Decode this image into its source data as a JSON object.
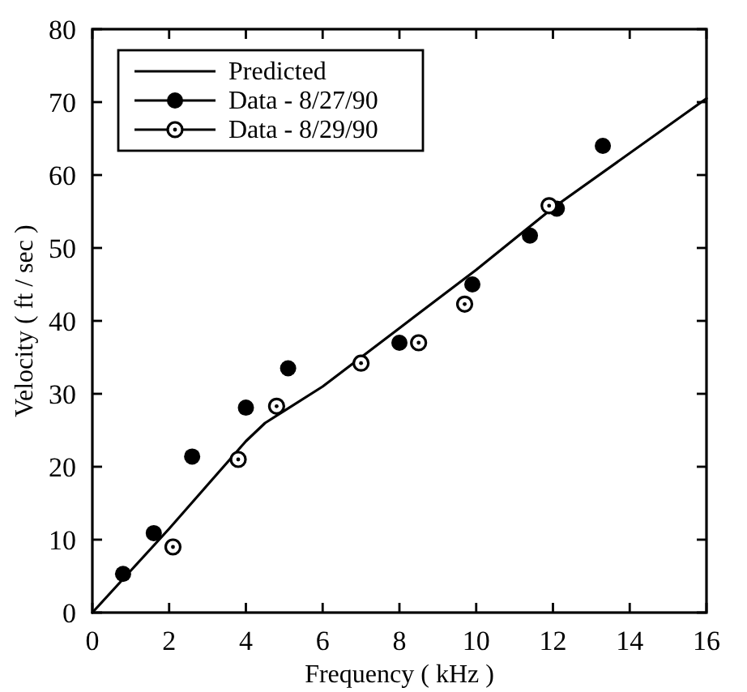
{
  "chart_data": {
    "type": "scatter",
    "xlabel": "Frequency ( kHz )",
    "ylabel": "Velocity ( ft / sec )",
    "xlim": [
      0,
      16
    ],
    "xticks": [
      0,
      2,
      4,
      6,
      8,
      10,
      12,
      14,
      16
    ],
    "ylim": [
      0,
      80
    ],
    "yticks": [
      0,
      10,
      20,
      30,
      40,
      50,
      60,
      70,
      80
    ],
    "grid": false,
    "legend": "top left",
    "series": [
      {
        "name": "Predicted",
        "type": "line",
        "color": "#000000",
        "marker": "none",
        "line_style": "solid",
        "x": [
          0,
          2,
          4,
          4.5,
          6,
          8,
          10,
          12,
          16
        ],
        "values": [
          0,
          11.5,
          23.5,
          26,
          31,
          39,
          47,
          55.5,
          70.5
        ]
      },
      {
        "name": "Data - 8/27/90",
        "color": "#000000",
        "marker": "circle",
        "x": [
          0.8,
          1.6,
          2.6,
          4.0,
          5.1,
          8.0,
          9.9,
          11.4,
          12.1,
          13.3
        ],
        "values": [
          5.3,
          10.9,
          21.4,
          28.1,
          33.5,
          37,
          45,
          51.7,
          55.4,
          64
        ]
      },
      {
        "name": "Data - 8/29/90",
        "color": "#000000",
        "marker": "circle",
        "x": [
          2.1,
          3.8,
          4.8,
          7.0,
          8.5,
          9.7,
          11.9
        ],
        "values": [
          9,
          21,
          28.3,
          34.2,
          37,
          42.3,
          55.8
        ]
      }
    ]
  }
}
